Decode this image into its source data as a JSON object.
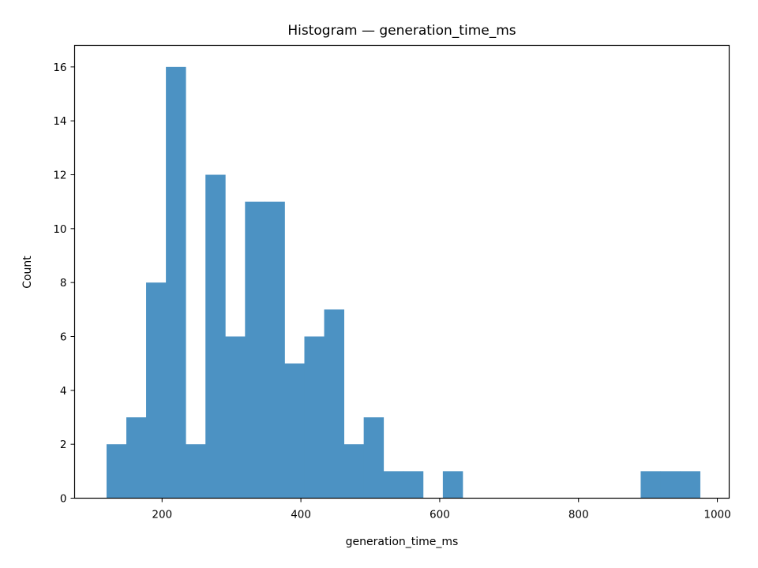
{
  "chart_data": {
    "type": "bar",
    "title": "Histogram — generation_time_ms",
    "xlabel": "generation_time_ms",
    "ylabel": "Count",
    "xlim": [
      74,
      1017
    ],
    "ylim": [
      0,
      16.8
    ],
    "xticks": [
      200,
      400,
      600,
      800,
      1000
    ],
    "yticks": [
      0,
      2,
      4,
      6,
      8,
      10,
      12,
      14,
      16
    ],
    "grid": false,
    "bar_color": "#4c92c3",
    "bin_edges": [
      120,
      148.5,
      177,
      205.5,
      234,
      262.5,
      291,
      319.5,
      348,
      376.5,
      405,
      433.5,
      462,
      490.5,
      519,
      547.5,
      576,
      604.5,
      633,
      661.5,
      690,
      718.5,
      747,
      775.5,
      804,
      832.5,
      861,
      889.5,
      918,
      946.5,
      975
    ],
    "values": [
      2,
      3,
      8,
      16,
      2,
      12,
      6,
      11,
      11,
      5,
      6,
      7,
      2,
      3,
      1,
      1,
      0,
      1,
      0,
      0,
      0,
      0,
      0,
      0,
      0,
      0,
      0,
      1,
      1,
      1
    ]
  }
}
